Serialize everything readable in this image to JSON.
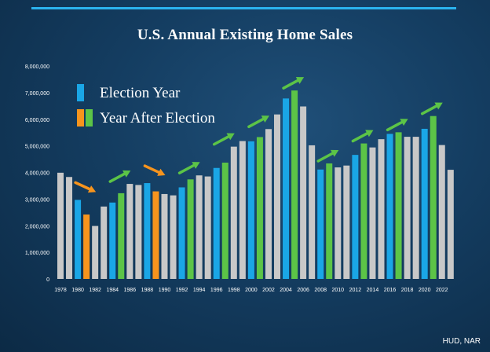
{
  "chart_data": {
    "type": "bar",
    "title": "U.S. Annual Existing Home Sales",
    "source": "HUD, NAR",
    "ylim": [
      0,
      8000000
    ],
    "y_ticks": [
      {
        "value": 0,
        "label": "0"
      },
      {
        "value": 1000000,
        "label": "1,000,000"
      },
      {
        "value": 2000000,
        "label": "2,000,000"
      },
      {
        "value": 3000000,
        "label": "3,000,000"
      },
      {
        "value": 4000000,
        "label": "4,000,000"
      },
      {
        "value": 5000000,
        "label": "5,000,000"
      },
      {
        "value": 6000000,
        "label": "6,000,000"
      },
      {
        "value": 7000000,
        "label": "7,000,000"
      },
      {
        "value": 8000000,
        "label": "8,000,000"
      }
    ],
    "x_tick_labels": [
      "1978",
      "1980",
      "1982",
      "1984",
      "1986",
      "1988",
      "1990",
      "1992",
      "1994",
      "1996",
      "1998",
      "2000",
      "2002",
      "2004",
      "2006",
      "2008",
      "2010",
      "2012",
      "2014",
      "2016",
      "2018",
      "2020",
      "2022"
    ],
    "legend": [
      {
        "label": "Election Year",
        "colors": [
          "#1aa6e6"
        ]
      },
      {
        "label": "Year After Election",
        "colors": [
          "#f7941d",
          "#5cc447"
        ]
      }
    ],
    "categories": [
      1978,
      1979,
      1980,
      1981,
      1982,
      1983,
      1984,
      1985,
      1986,
      1987,
      1988,
      1989,
      1990,
      1991,
      1992,
      1993,
      1994,
      1995,
      1996,
      1997,
      1998,
      1999,
      2000,
      2001,
      2002,
      2003,
      2004,
      2005,
      2006,
      2007,
      2008,
      2009,
      2010,
      2011,
      2012,
      2013,
      2014,
      2015,
      2016,
      2017,
      2018,
      2019,
      2020,
      2021,
      2022,
      2023
    ],
    "values": [
      3990000,
      3830000,
      2970000,
      2420000,
      1990000,
      2720000,
      2870000,
      3220000,
      3570000,
      3530000,
      3600000,
      3290000,
      3190000,
      3140000,
      3440000,
      3740000,
      3890000,
      3850000,
      4170000,
      4370000,
      4970000,
      5180000,
      5170000,
      5330000,
      5630000,
      6180000,
      6780000,
      7080000,
      6480000,
      5020000,
      4110000,
      4340000,
      4190000,
      4260000,
      4660000,
      5090000,
      4940000,
      5250000,
      5450000,
      5510000,
      5340000,
      5340000,
      5640000,
      6120000,
      5030000,
      4100000
    ],
    "bar_types": [
      "base",
      "base",
      "election",
      "after_down",
      "base",
      "base",
      "election",
      "after_up",
      "base",
      "base",
      "election",
      "after_down",
      "base",
      "base",
      "election",
      "after_up",
      "base",
      "base",
      "election",
      "after_up",
      "base",
      "base",
      "election",
      "after_up",
      "base",
      "base",
      "election",
      "after_up",
      "base",
      "base",
      "election",
      "after_up",
      "base",
      "base",
      "election",
      "after_up",
      "base",
      "base",
      "election",
      "after_up",
      "base",
      "base",
      "election",
      "after_up",
      "base",
      "base"
    ],
    "type_colors": {
      "base": "#c8c8c8",
      "election": "#1aa6e6",
      "after_down": "#f7941d",
      "after_up": "#5cc447"
    },
    "arrows": [
      {
        "from": 1980,
        "to": 1982,
        "direction": "down",
        "color": "#f7941d"
      },
      {
        "from": 1984,
        "to": 1986,
        "direction": "up",
        "color": "#5cc447"
      },
      {
        "from": 1988,
        "to": 1990,
        "direction": "down",
        "color": "#f7941d"
      },
      {
        "from": 1992,
        "to": 1994,
        "direction": "up",
        "color": "#5cc447"
      },
      {
        "from": 1996,
        "to": 1998,
        "direction": "up",
        "color": "#5cc447"
      },
      {
        "from": 2000,
        "to": 2002,
        "direction": "up",
        "color": "#5cc447"
      },
      {
        "from": 2004,
        "to": 2006,
        "direction": "up",
        "color": "#5cc447"
      },
      {
        "from": 2008,
        "to": 2010,
        "direction": "up",
        "color": "#5cc447"
      },
      {
        "from": 2012,
        "to": 2014,
        "direction": "up",
        "color": "#5cc447"
      },
      {
        "from": 2016,
        "to": 2018,
        "direction": "up",
        "color": "#5cc447"
      },
      {
        "from": 2020,
        "to": 2022,
        "direction": "up",
        "color": "#5cc447"
      }
    ],
    "grid": false,
    "legend_position": "top-left"
  }
}
